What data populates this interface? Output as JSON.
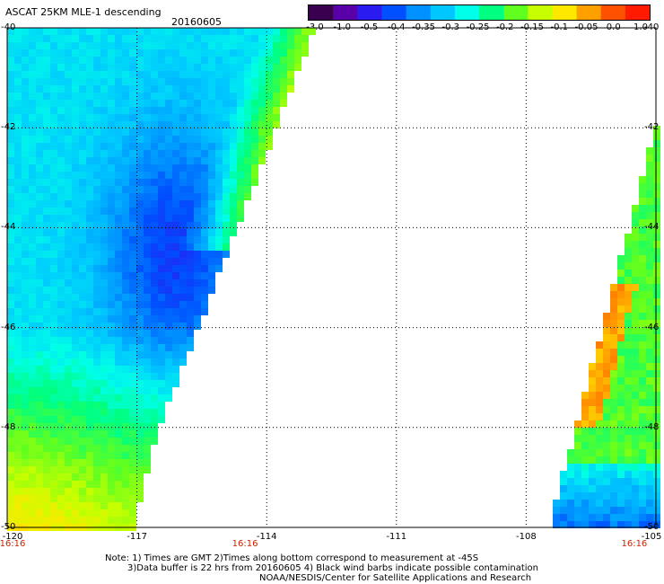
{
  "header": {
    "title": "ASCAT 25KM MLE-1 descending",
    "date": "20160605"
  },
  "colorbar": {
    "ticks": [
      "-3.0",
      "-1.0",
      "-0.5",
      "-0.4",
      "-0.35",
      "-0.3",
      "-0.25",
      "-0.2",
      "-0.15",
      "-0.1",
      "-0.05",
      "0.0",
      "1.0"
    ],
    "colors": [
      "#3a0050",
      "#5a00a8",
      "#2a1cf0",
      "#0050ff",
      "#0090ff",
      "#00c8ff",
      "#00ffe8",
      "#00ff80",
      "#60ff20",
      "#c8ff00",
      "#ffe800",
      "#ffa000",
      "#ff5000",
      "#ff1a00"
    ]
  },
  "map": {
    "lon_labels": [
      "-120",
      "-117",
      "-114",
      "-111",
      "-108",
      "-105"
    ],
    "lat_labels": [
      "-40",
      "-42",
      "-44",
      "-46",
      "-48",
      "-50"
    ],
    "lon_range": [
      -120,
      -105
    ],
    "lat_range": [
      -50,
      -40
    ],
    "time_labels": [
      {
        "text": "16:16",
        "lon": -120
      },
      {
        "text": "16:16",
        "lon": -114.5
      },
      {
        "text": "16:16",
        "lon": -105.5
      }
    ]
  },
  "notes": {
    "line1": "Note: 1) Times are GMT 2)Times along bottom correspond to measurement at -45S",
    "line2": "3)Data buffer is 22 hrs from 20160605 4) Black wind barbs indicate possible contamination",
    "line3": "NOAA/NESDIS/Center for Satellite Applications and Research"
  }
}
